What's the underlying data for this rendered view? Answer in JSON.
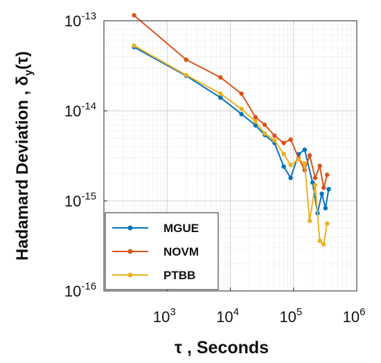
{
  "chart_data": {
    "type": "line",
    "xscale": "log",
    "yscale": "log",
    "xlim": [
      100,
      1000000
    ],
    "ylim": [
      1e-16,
      1e-13
    ],
    "grid": true,
    "legend_position": "bottom-left",
    "ylabel": "Hadamard Deviation , δy(τ)",
    "xlabel": "τ , Seconds",
    "x_ticks": [
      {
        "value": 1000,
        "base": "10",
        "exp": "3"
      },
      {
        "value": 10000,
        "base": "10",
        "exp": "4"
      },
      {
        "value": 100000,
        "base": "10",
        "exp": "5"
      },
      {
        "value": 1000000,
        "base": "10",
        "exp": "6"
      }
    ],
    "y_ticks": [
      {
        "value": 1e-16,
        "base": "10",
        "exp": "-16"
      },
      {
        "value": 1e-15,
        "base": "10",
        "exp": "-15"
      },
      {
        "value": 1e-14,
        "base": "10",
        "exp": "-14"
      },
      {
        "value": 1e-13,
        "base": "10",
        "exp": "-13"
      }
    ],
    "series": [
      {
        "name": "MGUE",
        "color": "#0072BD",
        "points": [
          [
            300,
            5.1e-14
          ],
          [
            2000,
            2.45e-14
          ],
          [
            7000,
            1.4e-14
          ],
          [
            15000,
            9.2e-15
          ],
          [
            25000,
            6.9e-15
          ],
          [
            35000,
            5.4e-15
          ],
          [
            50000,
            4.4e-15
          ],
          [
            70000,
            2.4e-15
          ],
          [
            90000,
            1.8e-15
          ],
          [
            120000,
            3.3e-15
          ],
          [
            150000,
            3.7e-15
          ],
          [
            200000,
            1.6e-15
          ],
          [
            240000,
            7.3e-16
          ],
          [
            280000,
            1.2e-15
          ],
          [
            320000,
            8.3e-16
          ],
          [
            360000,
            1.35e-15
          ]
        ]
      },
      {
        "name": "NOVM",
        "color": "#D95319",
        "points": [
          [
            300,
            1.15e-13
          ],
          [
            2000,
            3.7e-14
          ],
          [
            7000,
            2.35e-14
          ],
          [
            15000,
            1.55e-14
          ],
          [
            25000,
            8.5e-15
          ],
          [
            35000,
            7e-15
          ],
          [
            50000,
            5.3e-15
          ],
          [
            70000,
            4.4e-15
          ],
          [
            90000,
            4.8e-15
          ],
          [
            120000,
            3e-15
          ],
          [
            150000,
            2.2e-15
          ],
          [
            180000,
            3.2e-15
          ],
          [
            220000,
            1.8e-15
          ],
          [
            260000,
            2.45e-15
          ],
          [
            300000,
            1.4e-15
          ],
          [
            340000,
            1.95e-15
          ]
        ]
      },
      {
        "name": "PTBB",
        "color": "#EDB120",
        "points": [
          [
            300,
            5.3e-14
          ],
          [
            2000,
            2.5e-14
          ],
          [
            7000,
            1.55e-14
          ],
          [
            15000,
            1.05e-14
          ],
          [
            25000,
            7.6e-15
          ],
          [
            35000,
            5.6e-15
          ],
          [
            50000,
            4.7e-15
          ],
          [
            70000,
            3.3e-15
          ],
          [
            90000,
            2.5e-15
          ],
          [
            120000,
            2.9e-15
          ],
          [
            150000,
            2.6e-15
          ],
          [
            180000,
            6e-16
          ],
          [
            220000,
            1.5e-15
          ],
          [
            260000,
            3.6e-16
          ],
          [
            300000,
            3.3e-16
          ],
          [
            340000,
            5.6e-16
          ]
        ]
      }
    ]
  }
}
